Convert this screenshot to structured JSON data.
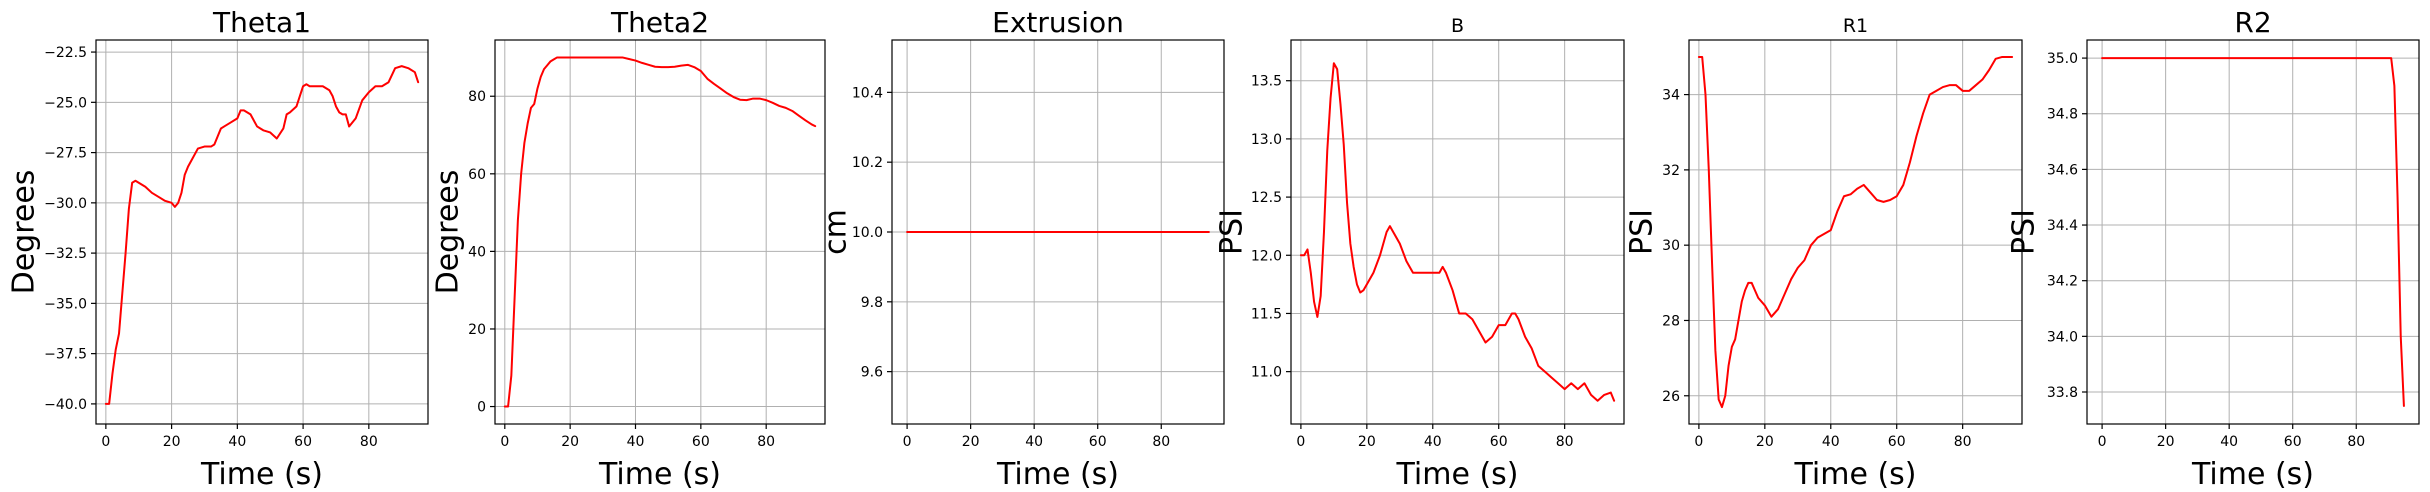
{
  "figure": {
    "line_color": "#ff0000",
    "grid_color": "#b0b0b0",
    "grid": true
  },
  "chart_data": [
    {
      "type": "line",
      "title": "Theta1",
      "xlabel": "Time (s)",
      "ylabel": "Degrees",
      "xlim": [
        -3,
        98
      ],
      "ylim": [
        -41.0,
        -21.9
      ],
      "xticks": [
        0,
        20,
        40,
        60,
        80
      ],
      "xtick_labels": [
        "0",
        "20",
        "40",
        "60",
        "80"
      ],
      "yticks": [
        -40.0,
        -37.5,
        -35.0,
        -32.5,
        -30.0,
        -27.5,
        -25.0,
        -22.5
      ],
      "ytick_labels": [
        "−40.0",
        "−37.5",
        "−35.0",
        "−32.5",
        "−30.0",
        "−27.5",
        "−25.0",
        "−22.5"
      ],
      "series": [
        {
          "x": [
            0,
            1,
            2,
            3,
            4,
            5,
            6,
            7,
            8,
            9,
            10,
            12,
            14,
            16,
            18,
            20,
            21,
            22,
            23,
            24,
            25,
            26,
            28,
            30,
            32,
            33,
            34,
            35,
            36,
            38,
            40,
            41,
            42,
            44,
            46,
            47,
            48,
            50,
            52,
            54,
            55,
            56,
            58,
            60,
            61,
            62,
            64,
            66,
            68,
            69,
            70,
            71,
            72,
            73,
            74,
            76,
            78,
            80,
            82,
            84,
            86,
            88,
            90,
            92,
            94,
            95
          ],
          "y": [
            -40.0,
            -40.0,
            -38.5,
            -37.3,
            -36.5,
            -34.5,
            -32.5,
            -30.3,
            -29.0,
            -28.9,
            -29.0,
            -29.2,
            -29.5,
            -29.7,
            -29.9,
            -30.0,
            -30.2,
            -30.0,
            -29.5,
            -28.6,
            -28.2,
            -27.9,
            -27.3,
            -27.2,
            -27.2,
            -27.1,
            -26.7,
            -26.3,
            -26.2,
            -26.0,
            -25.8,
            -25.4,
            -25.4,
            -25.6,
            -26.2,
            -26.3,
            -26.4,
            -26.5,
            -26.8,
            -26.3,
            -25.6,
            -25.5,
            -25.2,
            -24.2,
            -24.1,
            -24.2,
            -24.2,
            -24.2,
            -24.4,
            -24.7,
            -25.2,
            -25.5,
            -25.6,
            -25.6,
            -26.2,
            -25.8,
            -24.9,
            -24.5,
            -24.2,
            -24.2,
            -24.0,
            -23.3,
            -23.2,
            -23.3,
            -23.5,
            -24.0
          ]
        }
      ]
    },
    {
      "type": "line",
      "title": "Theta2",
      "xlabel": "Time (s)",
      "ylabel": "Degrees",
      "xlim": [
        -3,
        98
      ],
      "ylim": [
        -4.5,
        94.5
      ],
      "xticks": [
        0,
        20,
        40,
        60,
        80
      ],
      "xtick_labels": [
        "0",
        "20",
        "40",
        "60",
        "80"
      ],
      "yticks": [
        0,
        20,
        40,
        60,
        80
      ],
      "ytick_labels": [
        "0",
        "20",
        "40",
        "60",
        "80"
      ],
      "series": [
        {
          "x": [
            0,
            1,
            2,
            3,
            4,
            5,
            6,
            7,
            8,
            9,
            10,
            11,
            12,
            13,
            14,
            15,
            16,
            18,
            20,
            22,
            24,
            26,
            28,
            30,
            32,
            34,
            36,
            38,
            40,
            42,
            44,
            46,
            48,
            50,
            52,
            54,
            56,
            58,
            60,
            62,
            64,
            66,
            68,
            70,
            72,
            74,
            76,
            78,
            80,
            82,
            84,
            86,
            88,
            90,
            92,
            94,
            95
          ],
          "y": [
            0,
            0,
            8,
            28,
            48,
            60,
            68,
            73,
            77,
            78,
            82,
            85,
            87,
            88,
            89,
            89.5,
            90,
            90,
            90,
            90,
            90,
            90,
            90,
            90,
            90,
            90,
            90,
            89.6,
            89.2,
            88.6,
            88.1,
            87.6,
            87.5,
            87.5,
            87.6,
            87.9,
            88.1,
            87.5,
            86.5,
            84.5,
            83.2,
            82.0,
            80.8,
            79.8,
            79.1,
            79.0,
            79.4,
            79.4,
            79.0,
            78.3,
            77.5,
            77.0,
            76.2,
            75.0,
            73.8,
            72.7,
            72.3
          ]
        }
      ]
    },
    {
      "type": "line",
      "title": "Extrusion",
      "xlabel": "Time (s)",
      "ylabel": "cm",
      "xlim": [
        -4.75,
        99.75
      ],
      "ylim": [
        9.45,
        10.55
      ],
      "xticks": [
        0,
        20,
        40,
        60,
        80
      ],
      "xtick_labels": [
        "0",
        "20",
        "40",
        "60",
        "80"
      ],
      "yticks": [
        9.6,
        9.8,
        10.0,
        10.2,
        10.4
      ],
      "ytick_labels": [
        "9.6",
        "9.8",
        "10.0",
        "10.2",
        "10.4"
      ],
      "series": [
        {
          "x": [
            0,
            95
          ],
          "y": [
            10.0,
            10.0
          ]
        }
      ]
    },
    {
      "type": "line",
      "title": "B",
      "xlabel": "Time (s)",
      "ylabel": "PSI",
      "xlim": [
        -3,
        98
      ],
      "ylim": [
        10.55,
        13.85
      ],
      "xticks": [
        0,
        20,
        40,
        60,
        80
      ],
      "xtick_labels": [
        "0",
        "20",
        "40",
        "60",
        "80"
      ],
      "yticks": [
        11.0,
        11.5,
        12.0,
        12.5,
        13.0,
        13.5
      ],
      "ytick_labels": [
        "11.0",
        "11.5",
        "12.0",
        "12.5",
        "13.0",
        "13.5"
      ],
      "series": [
        {
          "x": [
            0,
            1,
            2,
            3,
            4,
            5,
            6,
            7,
            8,
            9,
            10,
            11,
            12,
            13,
            14,
            15,
            16,
            17,
            18,
            19,
            20,
            22,
            24,
            26,
            27,
            28,
            30,
            32,
            34,
            36,
            38,
            40,
            42,
            43,
            44,
            46,
            48,
            50,
            52,
            54,
            56,
            58,
            60,
            62,
            64,
            65,
            66,
            68,
            70,
            72,
            74,
            76,
            78,
            80,
            82,
            84,
            86,
            88,
            90,
            92,
            94,
            95
          ],
          "y": [
            12.0,
            12.0,
            12.05,
            11.85,
            11.6,
            11.47,
            11.65,
            12.2,
            12.9,
            13.35,
            13.65,
            13.6,
            13.3,
            12.95,
            12.45,
            12.1,
            11.9,
            11.75,
            11.68,
            11.7,
            11.75,
            11.85,
            12.0,
            12.2,
            12.25,
            12.2,
            12.1,
            11.95,
            11.85,
            11.85,
            11.85,
            11.85,
            11.85,
            11.9,
            11.85,
            11.7,
            11.5,
            11.5,
            11.45,
            11.35,
            11.25,
            11.3,
            11.4,
            11.4,
            11.5,
            11.5,
            11.45,
            11.3,
            11.2,
            11.05,
            11.0,
            10.95,
            10.9,
            10.85,
            10.9,
            10.85,
            10.9,
            10.8,
            10.75,
            10.8,
            10.82,
            10.75
          ]
        }
      ]
    },
    {
      "type": "line",
      "title": "R1",
      "xlabel": "Time (s)",
      "ylabel": "PSI",
      "xlim": [
        -3,
        98
      ],
      "ylim": [
        25.25,
        35.45
      ],
      "xticks": [
        0,
        20,
        40,
        60,
        80
      ],
      "xtick_labels": [
        "0",
        "20",
        "40",
        "60",
        "80"
      ],
      "yticks": [
        26,
        28,
        30,
        32,
        34
      ],
      "ytick_labels": [
        "26",
        "28",
        "30",
        "32",
        "34"
      ],
      "series": [
        {
          "x": [
            0,
            1,
            2,
            3,
            4,
            5,
            6,
            7,
            8,
            9,
            10,
            11,
            12,
            13,
            14,
            15,
            16,
            17,
            18,
            20,
            22,
            24,
            26,
            28,
            30,
            32,
            34,
            36,
            38,
            40,
            42,
            44,
            46,
            48,
            50,
            52,
            54,
            56,
            58,
            60,
            62,
            64,
            66,
            68,
            70,
            72,
            74,
            76,
            78,
            80,
            82,
            84,
            86,
            88,
            90,
            92,
            94,
            95
          ],
          "y": [
            35.0,
            35.0,
            34.0,
            32.0,
            29.5,
            27.2,
            25.9,
            25.7,
            26.0,
            26.8,
            27.3,
            27.5,
            28.0,
            28.5,
            28.8,
            29.0,
            29.0,
            28.8,
            28.6,
            28.4,
            28.1,
            28.3,
            28.7,
            29.1,
            29.4,
            29.6,
            30.0,
            30.2,
            30.3,
            30.4,
            30.9,
            31.3,
            31.35,
            31.5,
            31.6,
            31.4,
            31.2,
            31.15,
            31.2,
            31.3,
            31.6,
            32.2,
            32.9,
            33.5,
            34.0,
            34.1,
            34.2,
            34.25,
            34.25,
            34.1,
            34.1,
            34.25,
            34.4,
            34.65,
            34.95,
            35.0,
            35.0,
            35.0
          ]
        }
      ]
    },
    {
      "type": "line",
      "title": "R2",
      "xlabel": "Time (s)",
      "ylabel": "PSI",
      "xlim": [
        -4.75,
        99.75
      ],
      "ylim": [
        33.685,
        35.065
      ],
      "xticks": [
        0,
        20,
        40,
        60,
        80
      ],
      "xtick_labels": [
        "0",
        "20",
        "40",
        "60",
        "80"
      ],
      "yticks": [
        33.8,
        34.0,
        34.2,
        34.4,
        34.6,
        34.8,
        35.0
      ],
      "ytick_labels": [
        "33.8",
        "34.0",
        "34.2",
        "34.4",
        "34.6",
        "34.8",
        "35.0"
      ],
      "series": [
        {
          "x": [
            0,
            10,
            20,
            30,
            40,
            50,
            60,
            70,
            80,
            88,
            90,
            91,
            92,
            93,
            94,
            95
          ],
          "y": [
            35.0,
            35.0,
            35.0,
            35.0,
            35.0,
            35.0,
            35.0,
            35.0,
            35.0,
            35.0,
            35.0,
            35.0,
            34.9,
            34.5,
            34.0,
            33.75
          ]
        }
      ]
    }
  ]
}
